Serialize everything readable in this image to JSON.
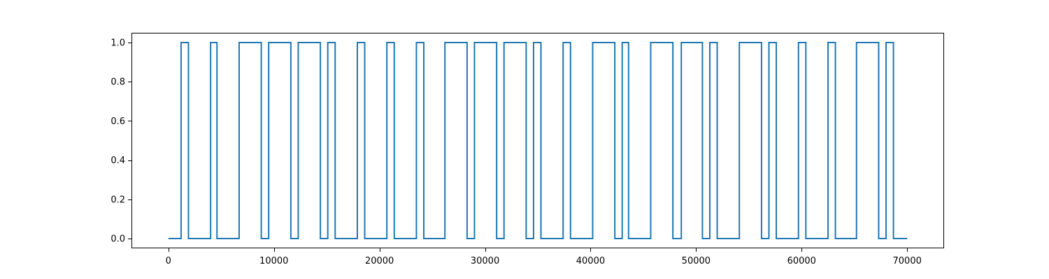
{
  "chart_data": {
    "type": "line",
    "step": true,
    "title": "",
    "xlabel": "",
    "ylabel": "",
    "xlim": [
      -3500,
      73500
    ],
    "ylim": [
      -0.05,
      1.05
    ],
    "xticks": [
      0,
      10000,
      20000,
      30000,
      40000,
      50000,
      60000,
      70000
    ],
    "xtick_labels": [
      "0",
      "10000",
      "20000",
      "30000",
      "40000",
      "50000",
      "60000",
      "70000"
    ],
    "yticks": [
      0.0,
      0.2,
      0.4,
      0.6,
      0.8,
      1.0
    ],
    "ytick_labels": [
      "0.0",
      "0.2",
      "0.4",
      "0.6",
      "0.8",
      "1.0"
    ],
    "grid": false,
    "legend": "none",
    "series": [
      {
        "color": "#1f77b4",
        "x": [
          0,
          1200,
          1200,
          1900,
          1900,
          4000,
          4000,
          4600,
          4600,
          6700,
          6700,
          8800,
          8800,
          9500,
          9500,
          11600,
          11600,
          12300,
          12300,
          14400,
          14400,
          15100,
          15100,
          15800,
          15800,
          17900,
          17900,
          18600,
          18600,
          20700,
          20700,
          21400,
          21400,
          23500,
          23500,
          24200,
          24200,
          26200,
          26200,
          28300,
          28300,
          29000,
          29000,
          31100,
          31100,
          31800,
          31800,
          33900,
          33900,
          34600,
          34600,
          35300,
          35300,
          37400,
          37400,
          38100,
          38100,
          40200,
          40200,
          42300,
          42300,
          43000,
          43000,
          43600,
          43600,
          45700,
          45700,
          47800,
          47800,
          48600,
          48600,
          50600,
          50600,
          51300,
          51300,
          52000,
          52000,
          54100,
          54100,
          56200,
          56200,
          56900,
          56900,
          57600,
          57600,
          59700,
          59700,
          60400,
          60400,
          62500,
          62500,
          63200,
          63200,
          65200,
          65200,
          67300,
          67300,
          68000,
          68000,
          68700,
          68700,
          70000
        ],
        "y": [
          0,
          0,
          1,
          1,
          0,
          0,
          1,
          1,
          0,
          0,
          1,
          1,
          0,
          0,
          1,
          1,
          0,
          0,
          1,
          1,
          0,
          0,
          1,
          1,
          0,
          0,
          1,
          1,
          0,
          0,
          1,
          1,
          0,
          0,
          1,
          1,
          0,
          0,
          1,
          1,
          0,
          0,
          1,
          1,
          0,
          0,
          1,
          1,
          0,
          0,
          1,
          1,
          0,
          0,
          1,
          1,
          0,
          0,
          1,
          1,
          0,
          0,
          1,
          1,
          0,
          0,
          1,
          1,
          0,
          0,
          1,
          1,
          0,
          0,
          1,
          1,
          0,
          0,
          1,
          1,
          0,
          0,
          1,
          1,
          0,
          0,
          1,
          1,
          0,
          0,
          1,
          1,
          0,
          0,
          1,
          1,
          0,
          0,
          1,
          1,
          0,
          0
        ]
      }
    ]
  }
}
